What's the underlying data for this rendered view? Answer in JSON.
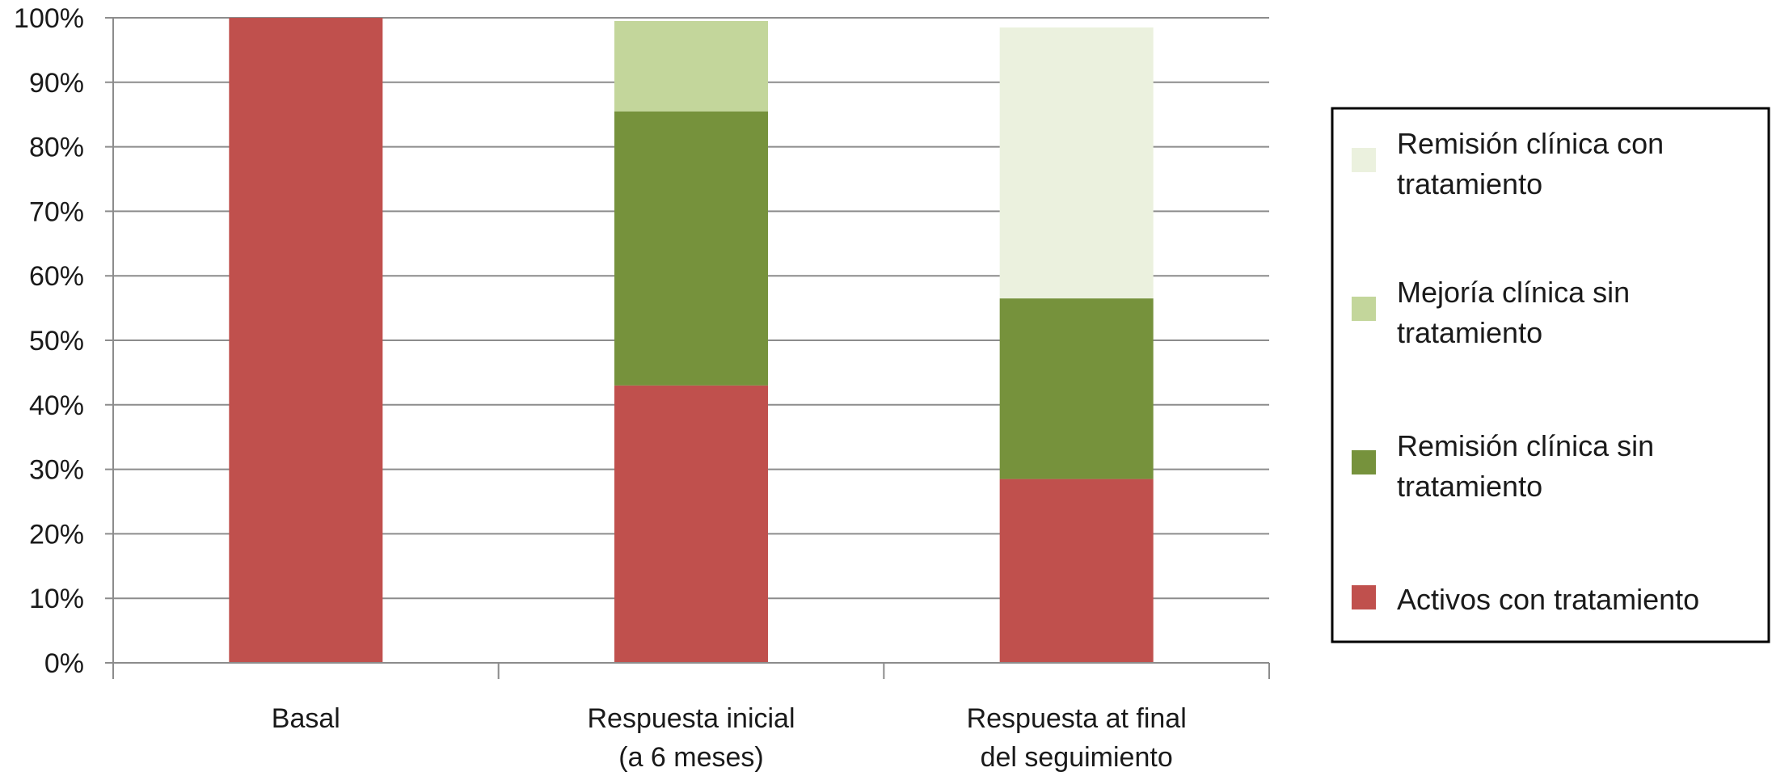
{
  "chart_data": {
    "type": "bar",
    "stacked": true,
    "title": "",
    "xlabel": "",
    "ylabel": "",
    "ylim": [
      0,
      100
    ],
    "y_tick_format": "percent",
    "y_ticks": [
      "0%",
      "10%",
      "20%",
      "30%",
      "40%",
      "50%",
      "60%",
      "70%",
      "80%",
      "90%",
      "100%"
    ],
    "grid": true,
    "legend_position": "right",
    "categories": [
      [
        "Basal"
      ],
      [
        "Respuesta inicial",
        "(a 6 meses)"
      ],
      [
        "Respuesta at final",
        "del seguimiento"
      ]
    ],
    "series": [
      {
        "name": "Activos con tratamiento",
        "color": "#c0504d",
        "values": [
          100,
          43,
          28.5
        ]
      },
      {
        "name": "Remisión clínica sin tratamiento",
        "color": "#76923c",
        "values": [
          0,
          42.5,
          28
        ]
      },
      {
        "name": "Mejoría clínica sin tratamiento",
        "color": "#c3d69b",
        "values": [
          0,
          14,
          0
        ]
      },
      {
        "name": "Remisión clínica con tratamiento",
        "color": "#ebf1de",
        "values": [
          0,
          0,
          42
        ]
      }
    ],
    "legend": [
      {
        "lines": [
          "Remisión clínica con",
          "tratamiento"
        ],
        "color": "#ebf1de"
      },
      {
        "lines": [
          "Mejoría clínica sin",
          "tratamiento"
        ],
        "color": "#c3d69b"
      },
      {
        "lines": [
          "Remisión clínica sin",
          "tratamiento"
        ],
        "color": "#76923c"
      },
      {
        "lines": [
          "Activos con tratamiento"
        ],
        "color": "#c0504d"
      }
    ],
    "colors": {
      "grid": "#8c8c8c",
      "axis": "#8c8c8c",
      "legend_border": "#000000"
    }
  }
}
